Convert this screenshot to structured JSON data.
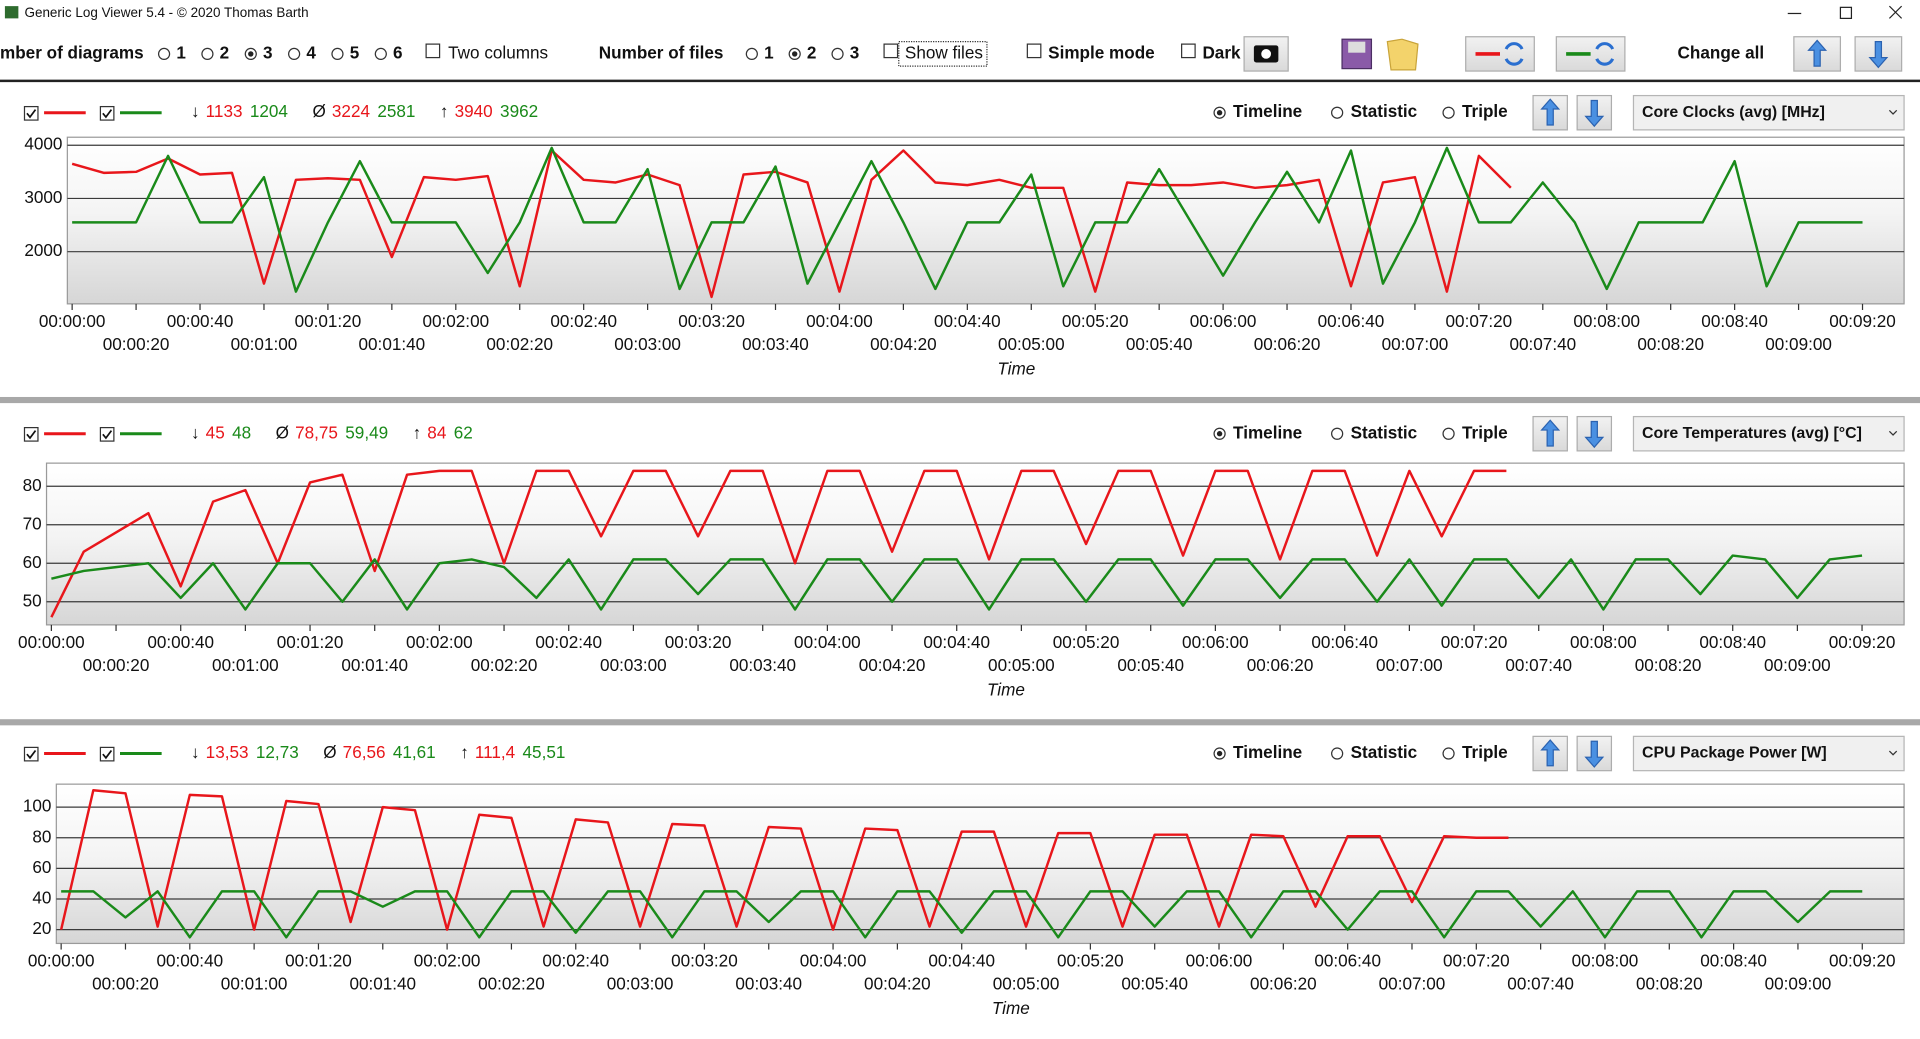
{
  "window": {
    "title": "Generic Log Viewer 5.4 - © 2020 Thomas Barth"
  },
  "toolbar": {
    "diagrams_label": "mber of diagrams",
    "diagram_options": [
      "1",
      "2",
      "3",
      "4",
      "5",
      "6"
    ],
    "two_columns": "Two columns",
    "files_label": "Number of files",
    "file_options": [
      "1",
      "2",
      "3"
    ],
    "show_files": "Show files",
    "simple_mode": "Simple mode",
    "dark": "Dark",
    "change_all": "Change all"
  },
  "chart_data": [
    {
      "type": "line",
      "dropdown": "Core Clocks (avg) [MHz]",
      "view_options": [
        "Timeline",
        "Statistic",
        "Triple"
      ],
      "stats": {
        "min_symbol": "↓",
        "avg_symbol": "Ø",
        "max_symbol": "↑",
        "min": [
          "1133",
          "1204"
        ],
        "avg": [
          "3224",
          "2581"
        ],
        "max": [
          "3940",
          "3962"
        ]
      },
      "x_label": "Time",
      "grid": true,
      "xlim": [
        -1.5,
        573
      ],
      "ylim": [
        1020,
        4150
      ],
      "yticks": [
        2000,
        3000,
        4000
      ],
      "xticks": [
        {
          "value": 0,
          "label": "00:00:00"
        },
        {
          "value": 20,
          "label": "00:00:20"
        },
        {
          "value": 40,
          "label": "00:00:40"
        },
        {
          "value": 60,
          "label": "00:01:00"
        },
        {
          "value": 80,
          "label": "00:01:20"
        },
        {
          "value": 100,
          "label": "00:01:40"
        },
        {
          "value": 120,
          "label": "00:02:00"
        },
        {
          "value": 140,
          "label": "00:02:20"
        },
        {
          "value": 160,
          "label": "00:02:40"
        },
        {
          "value": 180,
          "label": "00:03:00"
        },
        {
          "value": 200,
          "label": "00:03:20"
        },
        {
          "value": 220,
          "label": "00:03:40"
        },
        {
          "value": 240,
          "label": "00:04:00"
        },
        {
          "value": 260,
          "label": "00:04:20"
        },
        {
          "value": 280,
          "label": "00:04:40"
        },
        {
          "value": 300,
          "label": "00:05:00"
        },
        {
          "value": 320,
          "label": "00:05:20"
        },
        {
          "value": 340,
          "label": "00:05:40"
        },
        {
          "value": 360,
          "label": "00:06:00"
        },
        {
          "value": 380,
          "label": "00:06:20"
        },
        {
          "value": 400,
          "label": "00:06:40"
        },
        {
          "value": 420,
          "label": "00:07:00"
        },
        {
          "value": 440,
          "label": "00:07:20"
        },
        {
          "value": 460,
          "label": "00:07:40"
        },
        {
          "value": 480,
          "label": "00:08:00"
        },
        {
          "value": 500,
          "label": "00:08:20"
        },
        {
          "value": 520,
          "label": "00:08:40"
        },
        {
          "value": 540,
          "label": "00:09:00"
        },
        {
          "value": 560,
          "label": "00:09:20"
        }
      ],
      "x": [
        0,
        10,
        20,
        30,
        40,
        50,
        60,
        70,
        80,
        90,
        100,
        110,
        120,
        130,
        140,
        150,
        160,
        170,
        180,
        190,
        200,
        210,
        220,
        230,
        240,
        250,
        260,
        270,
        280,
        290,
        300,
        310,
        320,
        330,
        340,
        350,
        360,
        370,
        380,
        390,
        400,
        410,
        420,
        430,
        440,
        450,
        460,
        470,
        480,
        490,
        500,
        510,
        520,
        530,
        540,
        550,
        560
      ],
      "series": [
        {
          "color": "#e8161b",
          "values": [
            3650,
            3480,
            3500,
            3750,
            3450,
            3480,
            1400,
            3350,
            3380,
            3350,
            1900,
            3400,
            3350,
            3420,
            1350,
            3900,
            3350,
            3300,
            3450,
            3250,
            1150,
            3450,
            3500,
            3300,
            1250,
            3350,
            3900,
            3300,
            3250,
            3350,
            3200,
            3200,
            1250,
            3300,
            3250,
            3250,
            3300,
            3200,
            3250,
            3350,
            1350,
            3300,
            3400,
            1250,
            3800,
            3200,
            null,
            null,
            null,
            null,
            null,
            null,
            null,
            null,
            null,
            null,
            null
          ]
        },
        {
          "color": "#1a8a1a",
          "values": [
            2550,
            2550,
            2550,
            3800,
            2550,
            2550,
            3400,
            1250,
            2550,
            3700,
            2550,
            2550,
            2550,
            1600,
            2550,
            3950,
            2550,
            2550,
            3550,
            1300,
            2550,
            2550,
            3600,
            1400,
            2550,
            3700,
            2550,
            1300,
            2550,
            2550,
            3450,
            1350,
            2550,
            2550,
            3550,
            2550,
            1550,
            2550,
            3500,
            2550,
            3900,
            1400,
            2550,
            3950,
            2550,
            2550,
            3300,
            2550,
            1300,
            2550,
            2550,
            2550,
            3700,
            1350,
            2550,
            2550,
            2550
          ]
        }
      ]
    },
    {
      "type": "line",
      "dropdown": "Core Temperatures (avg) [°C]",
      "view_options": [
        "Timeline",
        "Statistic",
        "Triple"
      ],
      "stats": {
        "min_symbol": "↓",
        "avg_symbol": "Ø",
        "max_symbol": "↑",
        "min": [
          "45",
          "48"
        ],
        "avg": [
          "78,75",
          "59,49"
        ],
        "max": [
          "84",
          "62"
        ]
      },
      "x_label": "Time",
      "grid": true,
      "xlim": [
        -1.5,
        573
      ],
      "ylim": [
        44,
        86
      ],
      "yticks": [
        50,
        60,
        70,
        80
      ],
      "xticks": [
        {
          "value": 0,
          "label": "00:00:00"
        },
        {
          "value": 20,
          "label": "00:00:20"
        },
        {
          "value": 40,
          "label": "00:00:40"
        },
        {
          "value": 60,
          "label": "00:01:00"
        },
        {
          "value": 80,
          "label": "00:01:20"
        },
        {
          "value": 100,
          "label": "00:01:40"
        },
        {
          "value": 120,
          "label": "00:02:00"
        },
        {
          "value": 140,
          "label": "00:02:20"
        },
        {
          "value": 160,
          "label": "00:02:40"
        },
        {
          "value": 180,
          "label": "00:03:00"
        },
        {
          "value": 200,
          "label": "00:03:20"
        },
        {
          "value": 220,
          "label": "00:03:40"
        },
        {
          "value": 240,
          "label": "00:04:00"
        },
        {
          "value": 260,
          "label": "00:04:20"
        },
        {
          "value": 280,
          "label": "00:04:40"
        },
        {
          "value": 300,
          "label": "00:05:00"
        },
        {
          "value": 320,
          "label": "00:05:20"
        },
        {
          "value": 340,
          "label": "00:05:40"
        },
        {
          "value": 360,
          "label": "00:06:00"
        },
        {
          "value": 380,
          "label": "00:06:20"
        },
        {
          "value": 400,
          "label": "00:06:40"
        },
        {
          "value": 420,
          "label": "00:07:00"
        },
        {
          "value": 440,
          "label": "00:07:20"
        },
        {
          "value": 460,
          "label": "00:07:40"
        },
        {
          "value": 480,
          "label": "00:08:00"
        },
        {
          "value": 500,
          "label": "00:08:20"
        },
        {
          "value": 520,
          "label": "00:08:40"
        },
        {
          "value": 540,
          "label": "00:09:00"
        },
        {
          "value": 560,
          "label": "00:09:20"
        }
      ],
      "x": [
        0,
        10,
        20,
        30,
        40,
        50,
        60,
        70,
        80,
        90,
        100,
        110,
        120,
        130,
        140,
        150,
        160,
        170,
        180,
        190,
        200,
        210,
        220,
        230,
        240,
        250,
        260,
        270,
        280,
        290,
        300,
        310,
        320,
        330,
        340,
        350,
        360,
        370,
        380,
        390,
        400,
        410,
        420,
        430,
        440,
        450,
        460,
        470,
        480,
        490,
        500,
        510,
        520,
        530,
        540,
        550,
        560
      ],
      "series": [
        {
          "color": "#e8161b",
          "values": [
            46,
            63,
            68,
            73,
            54,
            76,
            79,
            60,
            81,
            83,
            58,
            83,
            84,
            84,
            60,
            84,
            84,
            67,
            84,
            84,
            67,
            84,
            84,
            60,
            84,
            84,
            63,
            84,
            84,
            61,
            84,
            84,
            65,
            84,
            84,
            62,
            84,
            84,
            61,
            84,
            84,
            62,
            84,
            67,
            84,
            84,
            null,
            null,
            null,
            null,
            null,
            null,
            null,
            null,
            null,
            null,
            null
          ]
        },
        {
          "color": "#1a8a1a",
          "values": [
            56,
            58,
            59,
            60,
            51,
            60,
            48,
            60,
            60,
            50,
            61,
            48,
            60,
            61,
            59,
            51,
            61,
            48,
            61,
            61,
            52,
            61,
            61,
            48,
            61,
            61,
            50,
            61,
            61,
            48,
            61,
            61,
            50,
            61,
            61,
            49,
            61,
            61,
            51,
            61,
            61,
            50,
            61,
            49,
            61,
            61,
            51,
            61,
            48,
            61,
            61,
            52,
            62,
            61,
            51,
            61,
            62
          ]
        }
      ]
    },
    {
      "type": "line",
      "dropdown": "CPU Package Power [W]",
      "view_options": [
        "Timeline",
        "Statistic",
        "Triple"
      ],
      "stats": {
        "min_symbol": "↓",
        "avg_symbol": "Ø",
        "max_symbol": "↑",
        "min": [
          "13,53",
          "12,73"
        ],
        "avg": [
          "76,56",
          "41,61"
        ],
        "max": [
          "111,4",
          "45,51"
        ]
      },
      "x_label": "Time",
      "grid": true,
      "xlim": [
        -1.5,
        573
      ],
      "ylim": [
        11,
        115
      ],
      "yticks": [
        20,
        40,
        60,
        80,
        100
      ],
      "xticks": [
        {
          "value": 0,
          "label": "00:00:00"
        },
        {
          "value": 20,
          "label": "00:00:20"
        },
        {
          "value": 40,
          "label": "00:00:40"
        },
        {
          "value": 60,
          "label": "00:01:00"
        },
        {
          "value": 80,
          "label": "00:01:20"
        },
        {
          "value": 100,
          "label": "00:01:40"
        },
        {
          "value": 120,
          "label": "00:02:00"
        },
        {
          "value": 140,
          "label": "00:02:20"
        },
        {
          "value": 160,
          "label": "00:02:40"
        },
        {
          "value": 180,
          "label": "00:03:00"
        },
        {
          "value": 200,
          "label": "00:03:20"
        },
        {
          "value": 220,
          "label": "00:03:40"
        },
        {
          "value": 240,
          "label": "00:04:00"
        },
        {
          "value": 260,
          "label": "00:04:20"
        },
        {
          "value": 280,
          "label": "00:04:40"
        },
        {
          "value": 300,
          "label": "00:05:00"
        },
        {
          "value": 320,
          "label": "00:05:20"
        },
        {
          "value": 340,
          "label": "00:05:40"
        },
        {
          "value": 360,
          "label": "00:06:00"
        },
        {
          "value": 380,
          "label": "00:06:20"
        },
        {
          "value": 400,
          "label": "00:06:40"
        },
        {
          "value": 420,
          "label": "00:07:00"
        },
        {
          "value": 440,
          "label": "00:07:20"
        },
        {
          "value": 460,
          "label": "00:07:40"
        },
        {
          "value": 480,
          "label": "00:08:00"
        },
        {
          "value": 500,
          "label": "00:08:20"
        },
        {
          "value": 520,
          "label": "00:08:40"
        },
        {
          "value": 540,
          "label": "00:09:00"
        },
        {
          "value": 560,
          "label": "00:09:20"
        }
      ],
      "x": [
        0,
        10,
        20,
        30,
        40,
        50,
        60,
        70,
        80,
        90,
        100,
        110,
        120,
        130,
        140,
        150,
        160,
        170,
        180,
        190,
        200,
        210,
        220,
        230,
        240,
        250,
        260,
        270,
        280,
        290,
        300,
        310,
        320,
        330,
        340,
        350,
        360,
        370,
        380,
        390,
        400,
        410,
        420,
        430,
        440,
        450,
        460,
        470,
        480,
        490,
        500,
        510,
        520,
        530,
        540,
        550,
        560
      ],
      "series": [
        {
          "color": "#e8161b",
          "values": [
            20,
            111,
            109,
            22,
            108,
            107,
            20,
            104,
            102,
            25,
            100,
            98,
            20,
            95,
            93,
            22,
            92,
            90,
            22,
            89,
            88,
            22,
            87,
            86,
            20,
            86,
            85,
            22,
            84,
            84,
            22,
            83,
            83,
            22,
            82,
            82,
            22,
            82,
            81,
            35,
            81,
            81,
            38,
            81,
            80,
            80,
            null,
            null,
            null,
            null,
            null,
            null,
            null,
            null,
            null,
            null,
            null
          ]
        },
        {
          "color": "#1a8a1a",
          "values": [
            45,
            45,
            28,
            45,
            15,
            45,
            45,
            15,
            45,
            45,
            35,
            45,
            45,
            15,
            45,
            45,
            18,
            45,
            45,
            15,
            45,
            45,
            25,
            45,
            45,
            15,
            45,
            45,
            18,
            45,
            45,
            15,
            45,
            45,
            22,
            45,
            45,
            15,
            45,
            45,
            20,
            45,
            45,
            15,
            45,
            45,
            22,
            45,
            15,
            45,
            45,
            15,
            45,
            45,
            25,
            45,
            45
          ]
        }
      ]
    }
  ]
}
